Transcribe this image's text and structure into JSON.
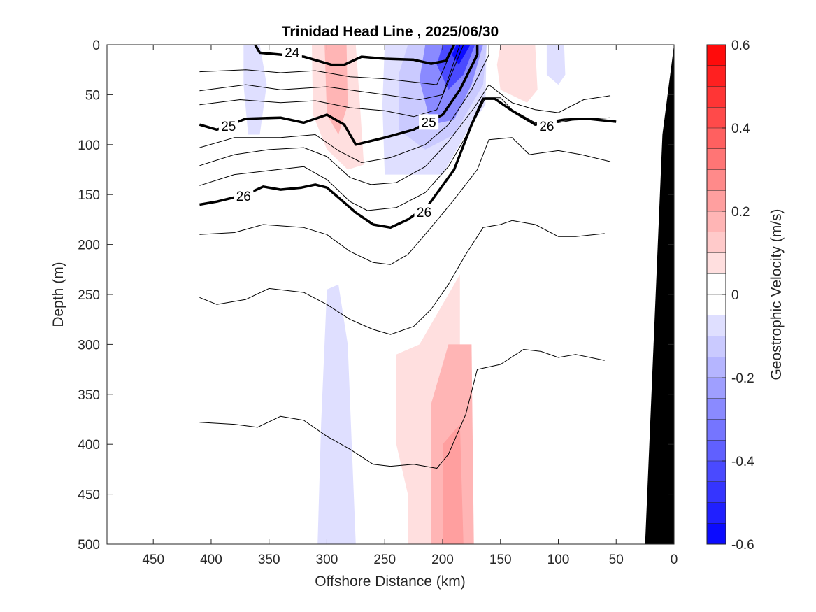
{
  "chart_data": {
    "type": "contour",
    "title": "Trinidad Head Line , 2025/06/30",
    "xlabel": "Offshore Distance (km)",
    "ylabel": "Depth (m)",
    "colorbar_label": "Geostrophic Velocity (m/s)",
    "xlim": [
      490,
      0
    ],
    "ylim": [
      0,
      500
    ],
    "x_reversed": true,
    "y_reversed": true,
    "xticks": [
      450,
      400,
      350,
      300,
      250,
      200,
      150,
      100,
      50,
      0
    ],
    "yticks": [
      0,
      50,
      100,
      150,
      200,
      250,
      300,
      350,
      400,
      450,
      500
    ],
    "clim": [
      -0.6,
      0.6
    ],
    "colorbar_ticks": [
      0.6,
      0.4,
      0.2,
      0,
      -0.2,
      -0.4,
      -0.6
    ],
    "colorbar_tick_labels": [
      "0.6",
      "0.4",
      "0.2",
      "0",
      "-0.2",
      "-0.4",
      "-0.6"
    ],
    "colorbar_levels": 24,
    "colormap": {
      "positive": "#ff0000",
      "zero": "#ffffff",
      "negative": "#0000ff"
    },
    "bathymetry_color": "#000000",
    "bathymetry": [
      [
        0,
        0
      ],
      [
        10,
        90
      ],
      [
        25,
        500
      ],
      [
        0,
        500
      ]
    ],
    "velocity_patches": [
      {
        "value": -0.06,
        "points": [
          [
            372,
            0
          ],
          [
            358,
            0
          ],
          [
            352,
            40
          ],
          [
            358,
            90
          ],
          [
            368,
            90
          ],
          [
            372,
            40
          ]
        ]
      },
      {
        "value": 0.09,
        "points": [
          [
            313,
            0
          ],
          [
            275,
            0
          ],
          [
            272,
            50
          ],
          [
            268,
            120
          ],
          [
            282,
            125
          ],
          [
            300,
            105
          ],
          [
            312,
            70
          ]
        ]
      },
      {
        "value": 0.15,
        "points": [
          [
            302,
            0
          ],
          [
            283,
            0
          ],
          [
            282,
            60
          ],
          [
            290,
            90
          ],
          [
            300,
            70
          ]
        ]
      },
      {
        "value": -0.08,
        "points": [
          [
            250,
            0
          ],
          [
            162,
            0
          ],
          [
            163,
            60
          ],
          [
            178,
            85
          ],
          [
            200,
            130
          ],
          [
            250,
            130
          ],
          [
            252,
            60
          ]
        ]
      },
      {
        "value": -0.15,
        "points": [
          [
            230,
            0
          ],
          [
            162,
            0
          ],
          [
            165,
            40
          ],
          [
            190,
            90
          ],
          [
            215,
            105
          ],
          [
            238,
            85
          ],
          [
            238,
            30
          ]
        ]
      },
      {
        "value": -0.27,
        "points": [
          [
            215,
            0
          ],
          [
            165,
            0
          ],
          [
            175,
            40
          ],
          [
            190,
            75
          ],
          [
            210,
            80
          ],
          [
            220,
            35
          ]
        ]
      },
      {
        "value": -0.4,
        "points": [
          [
            200,
            0
          ],
          [
            172,
            0
          ],
          [
            182,
            30
          ],
          [
            195,
            45
          ],
          [
            205,
            20
          ]
        ]
      },
      {
        "value": -0.55,
        "points": [
          [
            188,
            0
          ],
          [
            176,
            0
          ],
          [
            186,
            20
          ],
          [
            192,
            10
          ]
        ]
      },
      {
        "value": 0.08,
        "points": [
          [
            150,
            0
          ],
          [
            120,
            0
          ],
          [
            118,
            45
          ],
          [
            127,
            58
          ],
          [
            150,
            45
          ],
          [
            153,
            20
          ]
        ]
      },
      {
        "value": -0.06,
        "points": [
          [
            110,
            0
          ],
          [
            95,
            0
          ],
          [
            94,
            30
          ],
          [
            100,
            40
          ],
          [
            110,
            30
          ]
        ]
      },
      {
        "value": -0.07,
        "points": [
          [
            300,
            245
          ],
          [
            290,
            240
          ],
          [
            282,
            300
          ],
          [
            275,
            500
          ],
          [
            308,
            500
          ],
          [
            305,
            380
          ]
        ]
      },
      {
        "value": 0.08,
        "points": [
          [
            240,
            310
          ],
          [
            220,
            300
          ],
          [
            190,
            240
          ],
          [
            185,
            230
          ],
          [
            185,
            500
          ],
          [
            230,
            500
          ],
          [
            230,
            450
          ],
          [
            240,
            400
          ]
        ]
      },
      {
        "value": 0.15,
        "points": [
          [
            210,
            360
          ],
          [
            195,
            300
          ],
          [
            175,
            300
          ],
          [
            173,
            500
          ],
          [
            210,
            500
          ],
          [
            210,
            450
          ]
        ]
      },
      {
        "value": 0.22,
        "points": [
          [
            200,
            400
          ],
          [
            185,
            380
          ],
          [
            182,
            500
          ],
          [
            200,
            500
          ]
        ]
      }
    ],
    "isopycnals": [
      {
        "value": 24.0,
        "bold": true,
        "label": "24",
        "label_at": [
          330,
          8
        ],
        "points": [
          [
            362,
            0
          ],
          [
            358,
            8
          ],
          [
            320,
            12
          ],
          [
            296,
            20
          ],
          [
            285,
            20
          ],
          [
            270,
            12
          ],
          [
            250,
            14
          ],
          [
            225,
            15
          ],
          [
            210,
            19
          ],
          [
            197,
            16
          ],
          [
            190,
            0
          ]
        ]
      },
      {
        "value": 24.3,
        "bold": false,
        "points": [
          [
            410,
            27
          ],
          [
            370,
            25
          ],
          [
            340,
            28
          ],
          [
            310,
            26
          ],
          [
            280,
            32
          ],
          [
            250,
            34
          ],
          [
            220,
            38
          ],
          [
            205,
            40
          ],
          [
            190,
            0
          ]
        ]
      },
      {
        "value": 24.6,
        "bold": false,
        "points": [
          [
            410,
            46
          ],
          [
            370,
            40
          ],
          [
            340,
            45
          ],
          [
            300,
            42
          ],
          [
            275,
            46
          ],
          [
            250,
            50
          ],
          [
            220,
            55
          ],
          [
            200,
            50
          ],
          [
            185,
            0
          ]
        ]
      },
      {
        "value": 24.8,
        "bold": false,
        "points": [
          [
            410,
            60
          ],
          [
            375,
            55
          ],
          [
            340,
            58
          ],
          [
            310,
            56
          ],
          [
            280,
            63
          ],
          [
            250,
            66
          ],
          [
            225,
            72
          ],
          [
            205,
            65
          ],
          [
            182,
            0
          ]
        ]
      },
      {
        "value": 25.0,
        "bold": true,
        "label": "25",
        "label_at": [
          385,
          82
        ],
        "label2": "25",
        "label2_at": [
          212,
          78
        ],
        "points": [
          [
            410,
            80
          ],
          [
            395,
            85
          ],
          [
            370,
            74
          ],
          [
            340,
            73
          ],
          [
            320,
            78
          ],
          [
            300,
            70
          ],
          [
            285,
            80
          ],
          [
            275,
            100
          ],
          [
            250,
            93
          ],
          [
            225,
            85
          ],
          [
            200,
            70
          ],
          [
            185,
            45
          ],
          [
            170,
            10
          ],
          [
            170,
            0
          ]
        ]
      },
      {
        "value": 25.2,
        "bold": false,
        "points": [
          [
            410,
            103
          ],
          [
            380,
            93
          ],
          [
            340,
            93
          ],
          [
            310,
            90
          ],
          [
            290,
            106
          ],
          [
            270,
            118
          ],
          [
            245,
            113
          ],
          [
            215,
            100
          ],
          [
            195,
            80
          ],
          [
            175,
            45
          ],
          [
            160,
            10
          ],
          [
            160,
            0
          ]
        ]
      },
      {
        "value": 25.4,
        "bold": false,
        "points": [
          [
            410,
            121
          ],
          [
            380,
            110
          ],
          [
            350,
            105
          ],
          [
            320,
            103
          ],
          [
            300,
            112
          ],
          [
            280,
            133
          ],
          [
            262,
            140
          ],
          [
            240,
            138
          ],
          [
            215,
            122
          ],
          [
            195,
            97
          ],
          [
            172,
            62
          ],
          [
            160,
            40
          ],
          [
            140,
            58
          ],
          [
            120,
            65
          ],
          [
            100,
            68
          ],
          [
            78,
            55
          ],
          [
            55,
            51
          ]
        ]
      },
      {
        "value": 25.6,
        "bold": false,
        "points": [
          [
            410,
            141
          ],
          [
            380,
            130
          ],
          [
            350,
            126
          ],
          [
            320,
            122
          ],
          [
            300,
            135
          ],
          [
            280,
            157
          ],
          [
            265,
            166
          ],
          [
            240,
            163
          ],
          [
            215,
            148
          ],
          [
            195,
            122
          ],
          [
            175,
            82
          ],
          [
            163,
            53
          ],
          [
            150,
            53
          ],
          [
            140,
            65
          ],
          [
            120,
            78
          ],
          [
            100,
            78
          ],
          [
            85,
            75
          ],
          [
            55,
            73
          ]
        ]
      },
      {
        "value": 26.0,
        "bold": true,
        "label": "26",
        "label_at": [
          372,
          152
        ],
        "label2": "26",
        "label2_at": [
          216,
          168
        ],
        "label3": "26",
        "label3_at": [
          110,
          82
        ],
        "points": [
          [
            410,
            160
          ],
          [
            395,
            157
          ],
          [
            370,
            150
          ],
          [
            355,
            142
          ],
          [
            340,
            145
          ],
          [
            322,
            143
          ],
          [
            310,
            140
          ],
          [
            300,
            143
          ],
          [
            285,
            158
          ],
          [
            275,
            168
          ],
          [
            260,
            180
          ],
          [
            245,
            183
          ],
          [
            230,
            175
          ],
          [
            212,
            160
          ],
          [
            190,
            125
          ],
          [
            175,
            80
          ],
          [
            165,
            54
          ],
          [
            155,
            54
          ],
          [
            140,
            66
          ],
          [
            120,
            80
          ],
          [
            95,
            75
          ],
          [
            75,
            74
          ],
          [
            50,
            77
          ]
        ]
      },
      {
        "value": 26.2,
        "bold": false,
        "points": [
          [
            410,
            190
          ],
          [
            380,
            188
          ],
          [
            355,
            180
          ],
          [
            320,
            183
          ],
          [
            300,
            190
          ],
          [
            280,
            207
          ],
          [
            260,
            218
          ],
          [
            245,
            220
          ],
          [
            230,
            210
          ],
          [
            210,
            183
          ],
          [
            190,
            155
          ],
          [
            170,
            125
          ],
          [
            160,
            95
          ],
          [
            140,
            93
          ],
          [
            125,
            110
          ],
          [
            100,
            106
          ],
          [
            80,
            110
          ],
          [
            55,
            117
          ]
        ]
      },
      {
        "value": 26.5,
        "bold": false,
        "points": [
          [
            410,
            253
          ],
          [
            395,
            260
          ],
          [
            370,
            255
          ],
          [
            350,
            244
          ],
          [
            320,
            248
          ],
          [
            300,
            260
          ],
          [
            280,
            275
          ],
          [
            260,
            285
          ],
          [
            245,
            290
          ],
          [
            225,
            282
          ],
          [
            210,
            265
          ],
          [
            195,
            240
          ],
          [
            180,
            210
          ],
          [
            165,
            183
          ],
          [
            150,
            180
          ],
          [
            140,
            176
          ],
          [
            120,
            180
          ],
          [
            100,
            192
          ],
          [
            85,
            192
          ],
          [
            60,
            189
          ]
        ]
      },
      {
        "value": 26.8,
        "bold": false,
        "points": [
          [
            410,
            378
          ],
          [
            380,
            380
          ],
          [
            360,
            383
          ],
          [
            340,
            372
          ],
          [
            320,
            376
          ],
          [
            300,
            392
          ],
          [
            280,
            405
          ],
          [
            260,
            420
          ],
          [
            245,
            422
          ],
          [
            225,
            420
          ],
          [
            205,
            424
          ],
          [
            195,
            410
          ],
          [
            180,
            370
          ],
          [
            170,
            325
          ],
          [
            150,
            320
          ],
          [
            130,
            305
          ],
          [
            115,
            307
          ],
          [
            100,
            313
          ],
          [
            85,
            310
          ],
          [
            60,
            316
          ]
        ]
      }
    ]
  }
}
